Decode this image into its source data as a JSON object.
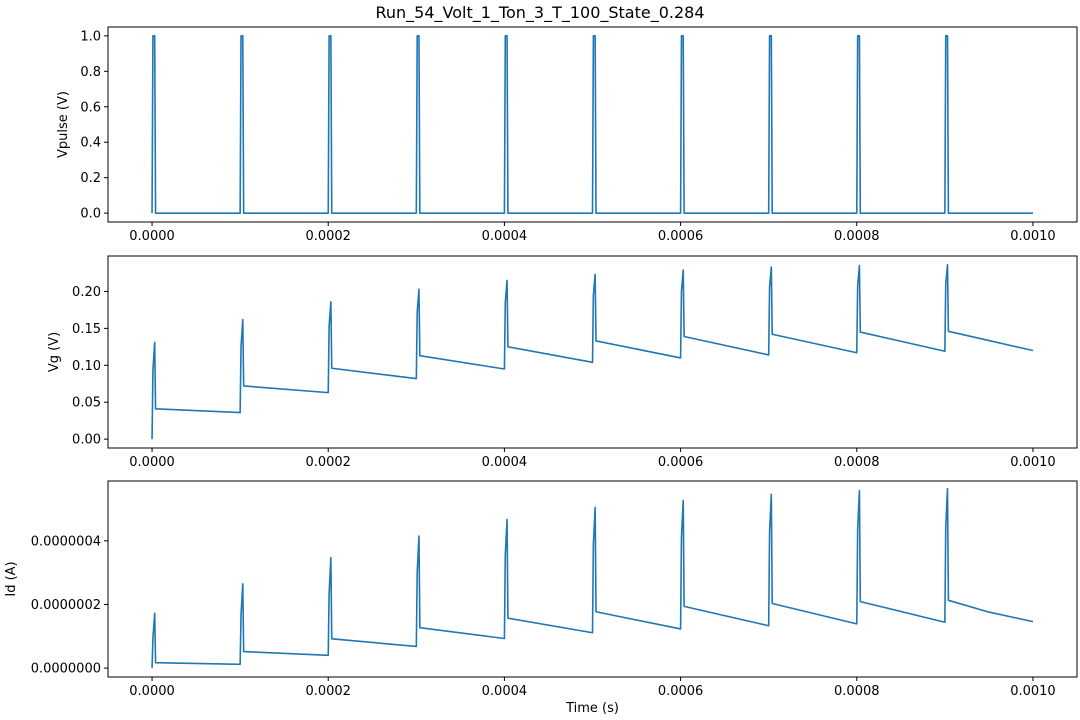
{
  "title": "Run_54_Volt_1_Ton_3_T_100_State_0.284",
  "colors": {
    "series": "#1f77b4",
    "axes": "#000000",
    "background": "#ffffff"
  },
  "chart_data": [
    {
      "type": "line",
      "xlabel": "",
      "ylabel": "Vpulse (V)",
      "xlim": [
        -5e-05,
        0.00105
      ],
      "ylim": [
        -0.05,
        1.05
      ],
      "xticks": [
        0,
        0.0002,
        0.0004,
        0.0006,
        0.0008,
        0.001
      ],
      "xtick_labels": [
        "0.0000",
        "0.0002",
        "0.0004",
        "0.0006",
        "0.0008",
        "0.0010"
      ],
      "yticks": [
        0,
        0.2,
        0.4,
        0.6,
        0.8,
        1.0
      ],
      "ytick_labels": [
        "0.0",
        "0.2",
        "0.4",
        "0.6",
        "0.8",
        "1.0"
      ],
      "series": [
        {
          "x": [
            0,
            1e-06,
            3e-06,
            4e-06,
            0.0001,
            0.000101,
            0.000103,
            0.000104,
            0.0002,
            0.000201,
            0.000203,
            0.000204,
            0.0003,
            0.000301,
            0.000303,
            0.000304,
            0.0004,
            0.000401,
            0.000403,
            0.000404,
            0.0005,
            0.000501,
            0.000503,
            0.000504,
            0.0006,
            0.000601,
            0.000603,
            0.000604,
            0.0007,
            0.000701,
            0.000703,
            0.000704,
            0.0008,
            0.000801,
            0.000803,
            0.000804,
            0.0009,
            0.000901,
            0.000903,
            0.000904,
            0.001
          ],
          "y": [
            0,
            1,
            1,
            0,
            0,
            1,
            1,
            0,
            0,
            1,
            1,
            0,
            0,
            1,
            1,
            0,
            0,
            1,
            1,
            0,
            0,
            1,
            1,
            0,
            0,
            1,
            1,
            0,
            0,
            1,
            1,
            0,
            0,
            1,
            1,
            0,
            0,
            1,
            1,
            0,
            0
          ]
        }
      ]
    },
    {
      "type": "line",
      "xlabel": "",
      "ylabel": "Vg (V)",
      "xlim": [
        -5e-05,
        0.00105
      ],
      "ylim": [
        -0.012,
        0.248
      ],
      "xticks": [
        0,
        0.0002,
        0.0004,
        0.0006,
        0.0008,
        0.001
      ],
      "xtick_labels": [
        "0.0000",
        "0.0002",
        "0.0004",
        "0.0006",
        "0.0008",
        "0.0010"
      ],
      "yticks": [
        0,
        0.05,
        0.1,
        0.15,
        0.2
      ],
      "ytick_labels": [
        "0.00",
        "0.05",
        "0.10",
        "0.15",
        "0.20"
      ],
      "series": [
        {
          "x": [
            0,
            1e-06,
            3e-06,
            4e-06,
            0.0001,
            0.000101,
            0.000103,
            0.000104,
            0.0002,
            0.000201,
            0.000203,
            0.000204,
            0.0003,
            0.000301,
            0.000303,
            0.000304,
            0.0004,
            0.000401,
            0.000403,
            0.000404,
            0.0005,
            0.000501,
            0.000503,
            0.000504,
            0.0006,
            0.000601,
            0.000603,
            0.000604,
            0.0007,
            0.000701,
            0.000703,
            0.000704,
            0.0008,
            0.000801,
            0.000803,
            0.000804,
            0.0009,
            0.000901,
            0.000903,
            0.000904,
            0.001
          ],
          "y": [
            0,
            0.093,
            0.131,
            0.041,
            0.036,
            0.125,
            0.162,
            0.072,
            0.063,
            0.153,
            0.186,
            0.096,
            0.082,
            0.172,
            0.203,
            0.113,
            0.095,
            0.185,
            0.215,
            0.125,
            0.104,
            0.195,
            0.223,
            0.133,
            0.11,
            0.2,
            0.229,
            0.139,
            0.114,
            0.205,
            0.233,
            0.142,
            0.117,
            0.207,
            0.235,
            0.145,
            0.119,
            0.21,
            0.236,
            0.146,
            0.12
          ]
        }
      ]
    },
    {
      "type": "line",
      "xlabel": "Time (s)",
      "ylabel": "Id (A)",
      "xlim": [
        -5e-05,
        0.00105
      ],
      "ylim": [
        -2.8e-08,
        5.88e-07
      ],
      "xticks": [
        0,
        0.0002,
        0.0004,
        0.0006,
        0.0008,
        0.001
      ],
      "xtick_labels": [
        "0.0000",
        "0.0002",
        "0.0004",
        "0.0006",
        "0.0008",
        "0.0010"
      ],
      "yticks": [
        0,
        2e-07,
        4e-07
      ],
      "ytick_labels": [
        "0.0000000",
        "0.0000002",
        "0.0000004"
      ],
      "series": [
        {
          "x": [
            0,
            1e-06,
            3e-06,
            4e-06,
            0.0001,
            0.000101,
            0.000103,
            0.000104,
            0.0002,
            0.000201,
            0.000203,
            0.000204,
            0.0003,
            0.000301,
            0.000303,
            0.000304,
            0.0004,
            0.000401,
            0.000403,
            0.000404,
            0.0005,
            0.000501,
            0.000503,
            0.000504,
            0.0006,
            0.000601,
            0.000603,
            0.000604,
            0.0007,
            0.000701,
            0.000703,
            0.000704,
            0.0008,
            0.000801,
            0.000803,
            0.000804,
            0.0009,
            0.000901,
            0.000903,
            0.000904,
            0.00095,
            0.001
          ],
          "y": [
            0,
            9.5e-08,
            1.72e-07,
            1.7e-08,
            1.2e-08,
            1.68e-07,
            2.65e-07,
            5.2e-08,
            4e-08,
            2.35e-07,
            3.47e-07,
            9.2e-08,
            6.8e-08,
            3e-07,
            4.15e-07,
            1.27e-07,
            9.3e-08,
            3.56e-07,
            4.67e-07,
            1.57e-07,
            1.11e-07,
            3.9e-07,
            5.05e-07,
            1.77e-07,
            1.23e-07,
            4.13e-07,
            5.27e-07,
            1.94e-07,
            1.33e-07,
            4.28e-07,
            5.46e-07,
            2.03e-07,
            1.39e-07,
            4.37e-07,
            5.58e-07,
            2.09e-07,
            1.44e-07,
            4.43e-07,
            5.64e-07,
            2.13e-07,
            1.76e-07,
            1.46e-07
          ]
        }
      ]
    }
  ]
}
